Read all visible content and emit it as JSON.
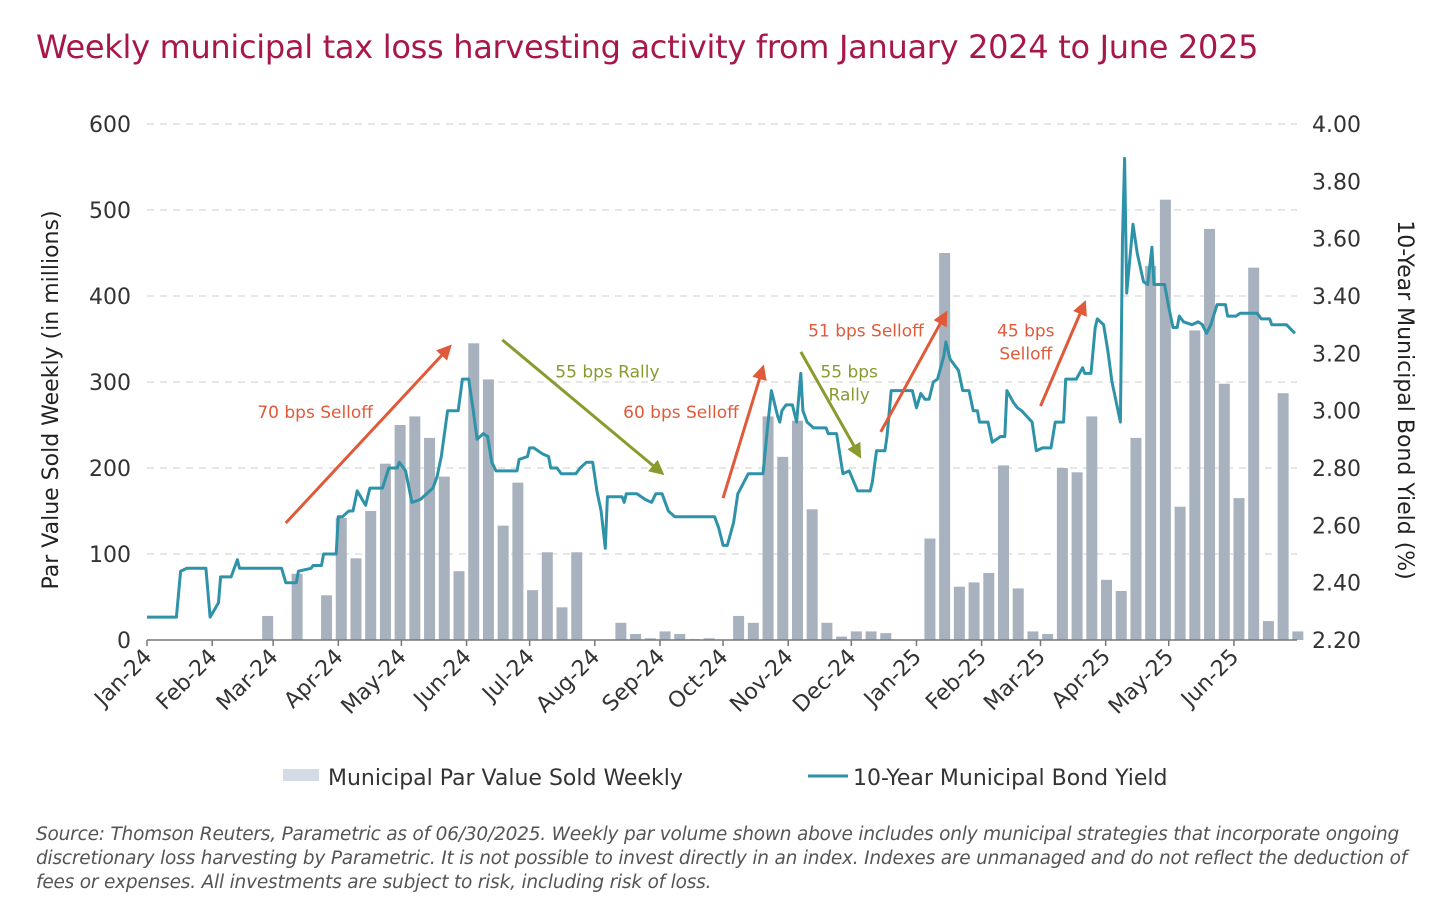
{
  "title": "Weekly municipal tax loss harvesting activity from January 2024 to June 2025",
  "footnote": "Source: Thomson Reuters, Parametric as of 06/30/2025. Weekly par volume shown above includes only municipal strategies that incorporate ongoing discretionary loss harvesting by Parametric. It is not possible to invest directly in an index. Indexes are unmanaged and do not reflect the deduction of fees or expenses. All investments are subject to risk, including risk of loss.",
  "colors": {
    "title": "#A8174B",
    "bars": "#A8B2BE",
    "bar_legend": "#D3DCE4",
    "line": "#2E93A8",
    "selloff": "#E05A3A",
    "rally": "#8A9A2E",
    "grid": "#CCCCCC"
  },
  "chart_data": {
    "type": "bar+line",
    "title": "Weekly municipal tax loss harvesting activity from January 2024 to June 2025",
    "xlabel": "",
    "ylabel": "Par Value Sold Weekly (in millions)",
    "y2label": "10-Year Municipal Bond Yield (%)",
    "ylim": [
      0,
      600
    ],
    "y2lim": [
      2.2,
      4.0
    ],
    "yticks": [
      "0",
      "100",
      "200",
      "300",
      "400",
      "500",
      "600"
    ],
    "y2ticks": [
      "2.20",
      "2.40",
      "2.60",
      "2.80",
      "3.00",
      "3.20",
      "3.40",
      "3.60",
      "3.80",
      "4.00"
    ],
    "x_unit": "days since 2024-01-01",
    "xlim": [
      0,
      547
    ],
    "xticks": [
      {
        "label": "Jan-24",
        "day": 0
      },
      {
        "label": "Feb-24",
        "day": 31
      },
      {
        "label": "Mar-24",
        "day": 60
      },
      {
        "label": "Apr-24",
        "day": 91
      },
      {
        "label": "May-24",
        "day": 121
      },
      {
        "label": "Jun-24",
        "day": 152
      },
      {
        "label": "Jul-24",
        "day": 182
      },
      {
        "label": "Aug-24",
        "day": 213
      },
      {
        "label": "Sep-24",
        "day": 244
      },
      {
        "label": "Oct-24",
        "day": 274
      },
      {
        "label": "Nov-24",
        "day": 305
      },
      {
        "label": "Dec-24",
        "day": 335
      },
      {
        "label": "Jan-25",
        "day": 366
      },
      {
        "label": "Feb-25",
        "day": 397
      },
      {
        "label": "Mar-25",
        "day": 425
      },
      {
        "label": "Apr-25",
        "day": 456
      },
      {
        "label": "May-25",
        "day": 486
      },
      {
        "label": "Jun-25",
        "day": 517
      }
    ],
    "grid": true,
    "legend_position": "bottom",
    "series": [
      {
        "name": "Municipal Par Value Sold Weekly",
        "type": "bar",
        "axis": "left",
        "week_values": [
          0,
          0,
          0,
          0,
          0,
          0,
          0,
          0,
          28,
          0,
          77,
          0,
          52,
          142,
          95,
          150,
          205,
          250,
          260,
          235,
          190,
          80,
          345,
          303,
          133,
          183,
          58,
          102,
          38,
          102,
          0,
          0,
          20,
          7,
          2,
          10,
          7,
          1,
          2,
          0,
          28,
          20,
          260,
          213,
          255,
          152,
          20,
          4,
          10,
          10,
          8,
          0,
          0,
          118,
          450,
          62,
          67,
          78,
          203,
          60,
          10,
          7,
          200,
          195,
          260,
          70,
          57,
          235,
          435,
          512,
          155,
          360,
          478,
          298,
          165,
          433,
          22,
          287,
          10
        ]
      },
      {
        "name": "10-Year Municipal Bond Yield",
        "type": "line",
        "axis": "right",
        "points": [
          [
            0,
            2.28
          ],
          [
            14,
            2.28
          ],
          [
            16,
            2.44
          ],
          [
            19,
            2.45
          ],
          [
            28,
            2.45
          ],
          [
            30,
            2.28
          ],
          [
            34,
            2.33
          ],
          [
            35,
            2.42
          ],
          [
            40,
            2.42
          ],
          [
            43,
            2.48
          ],
          [
            44,
            2.45
          ],
          [
            64,
            2.45
          ],
          [
            66,
            2.4
          ],
          [
            71,
            2.4
          ],
          [
            72,
            2.44
          ],
          [
            78,
            2.45
          ],
          [
            79,
            2.46
          ],
          [
            83,
            2.46
          ],
          [
            84,
            2.5
          ],
          [
            90,
            2.5
          ],
          [
            91,
            2.63
          ],
          [
            93,
            2.63
          ],
          [
            96,
            2.65
          ],
          [
            98,
            2.65
          ],
          [
            100,
            2.72
          ],
          [
            104,
            2.67
          ],
          [
            106,
            2.73
          ],
          [
            112,
            2.73
          ],
          [
            115,
            2.8
          ],
          [
            119,
            2.8
          ],
          [
            120,
            2.82
          ],
          [
            123,
            2.79
          ],
          [
            126,
            2.68
          ],
          [
            130,
            2.69
          ],
          [
            133,
            2.71
          ],
          [
            136,
            2.73
          ],
          [
            138,
            2.77
          ],
          [
            140,
            2.84
          ],
          [
            143,
            3.0
          ],
          [
            148,
            3.0
          ],
          [
            150,
            3.11
          ],
          [
            153,
            3.11
          ],
          [
            155,
            3.01
          ],
          [
            157,
            2.9
          ],
          [
            160,
            2.92
          ],
          [
            162,
            2.91
          ],
          [
            164,
            2.82
          ],
          [
            166,
            2.79
          ],
          [
            176,
            2.79
          ],
          [
            177,
            2.83
          ],
          [
            181,
            2.84
          ],
          [
            182,
            2.87
          ],
          [
            184,
            2.87
          ],
          [
            188,
            2.85
          ],
          [
            191,
            2.84
          ],
          [
            192,
            2.8
          ],
          [
            195,
            2.8
          ],
          [
            197,
            2.78
          ],
          [
            204,
            2.78
          ],
          [
            206,
            2.8
          ],
          [
            209,
            2.82
          ],
          [
            212,
            2.82
          ],
          [
            214,
            2.72
          ],
          [
            216,
            2.65
          ],
          [
            218,
            2.52
          ],
          [
            219,
            2.7
          ],
          [
            226,
            2.7
          ],
          [
            227,
            2.68
          ],
          [
            228,
            2.71
          ],
          [
            233,
            2.71
          ],
          [
            237,
            2.69
          ],
          [
            240,
            2.68
          ],
          [
            242,
            2.71
          ],
          [
            245,
            2.71
          ],
          [
            248,
            2.65
          ],
          [
            251,
            2.63
          ],
          [
            270,
            2.63
          ],
          [
            272,
            2.59
          ],
          [
            274,
            2.53
          ],
          [
            276,
            2.53
          ],
          [
            279,
            2.61
          ],
          [
            281,
            2.71
          ],
          [
            286,
            2.78
          ],
          [
            293,
            2.78
          ],
          [
            295,
            2.93
          ],
          [
            297,
            3.07
          ],
          [
            300,
            2.98
          ],
          [
            301,
            2.96
          ],
          [
            302,
            3.0
          ],
          [
            304,
            3.02
          ],
          [
            307,
            3.02
          ],
          [
            309,
            2.96
          ],
          [
            311,
            3.13
          ],
          [
            312,
            3.0
          ],
          [
            314,
            2.96
          ],
          [
            317,
            2.94
          ],
          [
            323,
            2.94
          ],
          [
            324,
            2.92
          ],
          [
            328,
            2.92
          ],
          [
            331,
            2.78
          ],
          [
            334,
            2.79
          ],
          [
            338,
            2.72
          ],
          [
            344,
            2.72
          ],
          [
            345,
            2.75
          ],
          [
            347,
            2.86
          ],
          [
            351,
            2.86
          ],
          [
            352,
            2.91
          ],
          [
            354,
            3.07
          ],
          [
            364,
            3.07
          ],
          [
            366,
            3.01
          ],
          [
            368,
            3.06
          ],
          [
            370,
            3.04
          ],
          [
            372,
            3.04
          ],
          [
            374,
            3.1
          ],
          [
            376,
            3.11
          ],
          [
            379,
            3.19
          ],
          [
            380,
            3.24
          ],
          [
            382,
            3.18
          ],
          [
            386,
            3.14
          ],
          [
            388,
            3.07
          ],
          [
            391,
            3.07
          ],
          [
            393,
            3.0
          ],
          [
            395,
            3.0
          ],
          [
            396,
            2.96
          ],
          [
            400,
            2.96
          ],
          [
            402,
            2.89
          ],
          [
            406,
            2.91
          ],
          [
            408,
            2.91
          ],
          [
            409,
            3.07
          ],
          [
            412,
            3.03
          ],
          [
            414,
            3.01
          ],
          [
            416,
            3.0
          ],
          [
            421,
            2.96
          ],
          [
            423,
            2.86
          ],
          [
            426,
            2.87
          ],
          [
            430,
            2.87
          ],
          [
            432,
            2.96
          ],
          [
            436,
            2.96
          ],
          [
            437,
            3.11
          ],
          [
            442,
            3.11
          ],
          [
            445,
            3.15
          ],
          [
            446,
            3.13
          ],
          [
            449,
            3.13
          ],
          [
            451,
            3.29
          ],
          [
            452,
            3.32
          ],
          [
            455,
            3.3
          ],
          [
            457,
            3.21
          ],
          [
            459,
            3.1
          ],
          [
            463,
            2.96
          ],
          [
            464,
            3.6
          ],
          [
            465,
            3.88
          ],
          [
            466,
            3.41
          ],
          [
            469,
            3.65
          ],
          [
            471,
            3.55
          ],
          [
            474,
            3.45
          ],
          [
            476,
            3.44
          ],
          [
            478,
            3.57
          ],
          [
            479,
            3.44
          ],
          [
            484,
            3.44
          ],
          [
            486,
            3.36
          ],
          [
            488,
            3.29
          ],
          [
            490,
            3.29
          ],
          [
            491,
            3.33
          ],
          [
            493,
            3.31
          ],
          [
            497,
            3.3
          ],
          [
            500,
            3.31
          ],
          [
            502,
            3.3
          ],
          [
            504,
            3.27
          ],
          [
            506,
            3.3
          ],
          [
            509,
            3.37
          ],
          [
            513,
            3.37
          ],
          [
            514,
            3.33
          ],
          [
            518,
            3.33
          ],
          [
            520,
            3.34
          ],
          [
            521,
            3.34
          ],
          [
            528,
            3.34
          ],
          [
            530,
            3.32
          ],
          [
            534,
            3.32
          ],
          [
            535,
            3.3
          ],
          [
            542,
            3.3
          ],
          [
            546,
            3.27
          ]
        ]
      }
    ],
    "annotations": [
      {
        "lines": [
          "70 bps Selloff"
        ],
        "kind": "selloff",
        "from": [
          66,
          136
        ],
        "to": [
          144,
          341
        ],
        "text_at": [
          80,
          265
        ]
      },
      {
        "lines": [
          "55 bps Rally"
        ],
        "kind": "rally",
        "from": [
          169,
          349
        ],
        "to": [
          245,
          194
        ],
        "text_at": [
          219,
          312
        ]
      },
      {
        "lines": [
          "60 bps Selloff"
        ],
        "kind": "selloff",
        "from": [
          274,
          165
        ],
        "to": [
          293,
          317
        ],
        "text_at": [
          254,
          265
        ]
      },
      {
        "lines": [
          "55 bps",
          "Rally"
        ],
        "kind": "rally",
        "from": [
          311,
          335
        ],
        "to": [
          339,
          214
        ],
        "text_at": [
          334,
          312
        ]
      },
      {
        "lines": [
          "51 bps Selloff"
        ],
        "kind": "selloff",
        "from": [
          349,
          242
        ],
        "to": [
          380,
          380
        ],
        "text_at": [
          342,
          360
        ]
      },
      {
        "lines": [
          "45 bps",
          "Selloff"
        ],
        "kind": "selloff",
        "from": [
          425,
          272
        ],
        "to": [
          446,
          392
        ],
        "text_at": [
          418,
          360
        ]
      }
    ]
  }
}
